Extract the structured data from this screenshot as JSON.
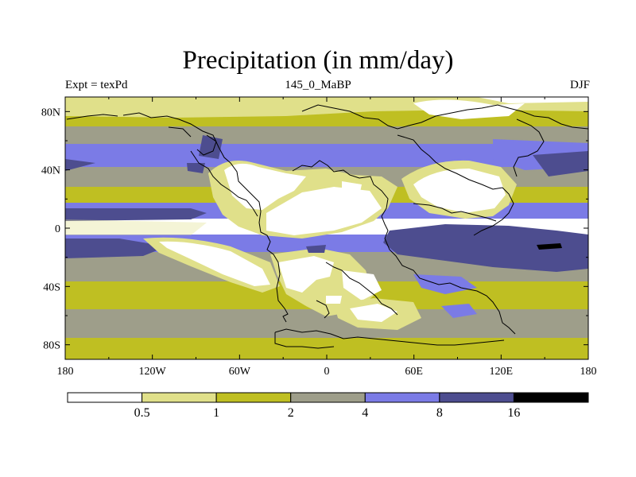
{
  "chart_data": {
    "type": "heatmap",
    "title": "Precipitation (in mm/day)",
    "left_subtitle": "Expt = texPd",
    "center_subtitle": "145_0_MaBP",
    "right_subtitle": "DJF",
    "x_ticks": [
      "180",
      "120W",
      "60W",
      "0",
      "60E",
      "120E",
      "180"
    ],
    "y_ticks": [
      "80N",
      "40N",
      "0",
      "40S",
      "80S"
    ],
    "xlim": [
      -180,
      180
    ],
    "ylim": [
      -90,
      90
    ],
    "colorbar": {
      "levels": [
        "0.5",
        "1",
        "2",
        "4",
        "8",
        "16"
      ],
      "colors": [
        "#ffffff",
        "#e0e08a",
        "#bfbf22",
        "#9e9e8a",
        "#7b7be6",
        "#4d4d8f",
        "#000000"
      ]
    },
    "zonal_bands": [
      {
        "lat_from": 90,
        "lat_to": 82,
        "value": "0.5-1"
      },
      {
        "lat_from": 82,
        "lat_to": 70,
        "value": "1-2"
      },
      {
        "lat_from": 70,
        "lat_to": 58,
        "value": "2-4"
      },
      {
        "lat_from": 58,
        "lat_to": 42,
        "value": "4-8"
      },
      {
        "lat_from": 42,
        "lat_to": 28,
        "value": "2-4"
      },
      {
        "lat_from": 28,
        "lat_to": 18,
        "value": "1-2"
      },
      {
        "lat_from": 18,
        "lat_to": 8,
        "value": "4-8"
      },
      {
        "lat_from": 8,
        "lat_to": -4,
        "value": "0-0.5"
      },
      {
        "lat_from": -4,
        "lat_to": -15,
        "value": "4-8"
      },
      {
        "lat_from": -15,
        "lat_to": -35,
        "value": "2-4"
      },
      {
        "lat_from": -35,
        "lat_to": -55,
        "value": "1-2"
      },
      {
        "lat_from": -55,
        "lat_to": -75,
        "value": "2-4"
      },
      {
        "lat_from": -75,
        "lat_to": -90,
        "value": "1-2"
      }
    ]
  }
}
